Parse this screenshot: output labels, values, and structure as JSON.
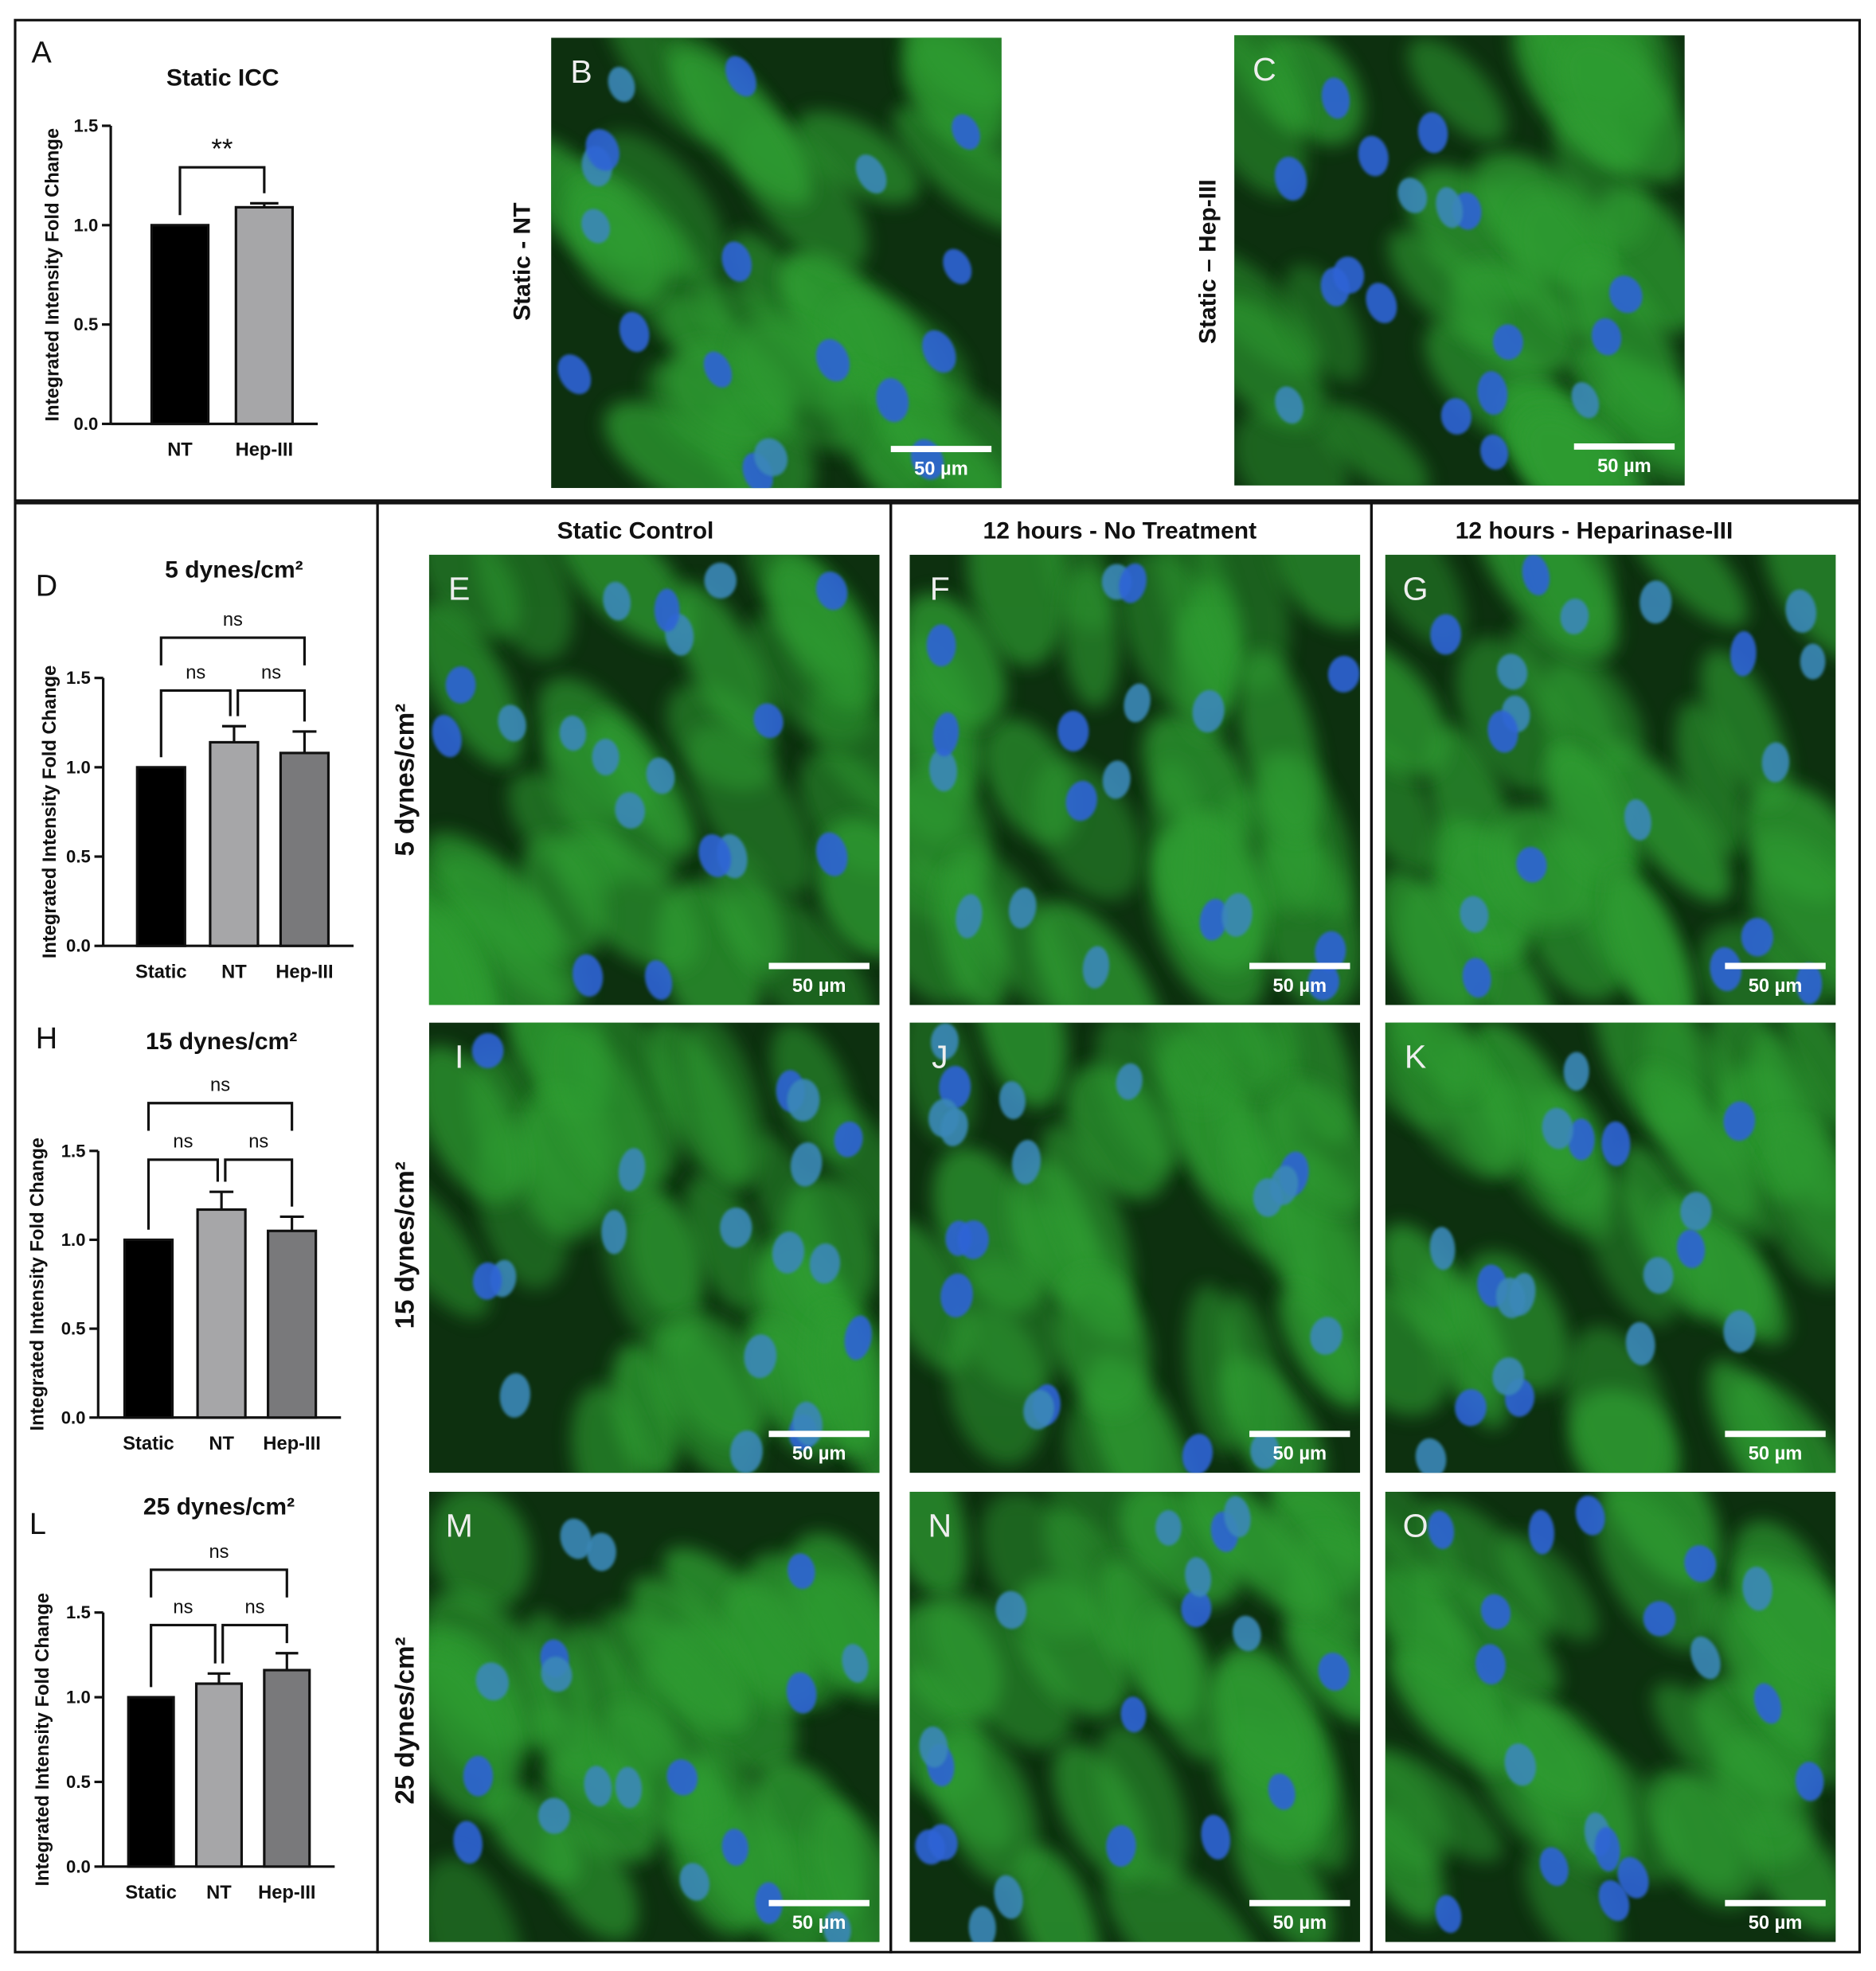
{
  "chart_data": [
    {
      "type": "bar",
      "panel": "A",
      "title": "Static ICC",
      "ylabel": "Integrated Intensity Fold Change",
      "categories": [
        "NT",
        "Hep-III"
      ],
      "values": [
        1.0,
        1.09
      ],
      "errors": [
        null,
        0.02
      ],
      "colors": [
        "#000000",
        "#a6a6a8"
      ],
      "ylim": [
        0,
        1.5
      ],
      "yticks": [
        {
          "value": 0,
          "label": "0.0"
        },
        0.5,
        {
          "value": 1,
          "label": "1.0"
        },
        1.5
      ],
      "annotations": [
        "**"
      ]
    },
    {
      "type": "bar",
      "panel": "D",
      "title": "5 dynes/cm²",
      "ylabel": "Integrated Intensity Fold Change",
      "categories": [
        "Static",
        "NT",
        "Hep-III"
      ],
      "values": [
        1.0,
        1.14,
        1.08
      ],
      "errors": [
        null,
        0.09,
        0.12
      ],
      "colors": [
        "#000000",
        "#a6a6a8",
        "#79797b"
      ],
      "ylim": [
        0,
        1.5
      ],
      "yticks": [
        {
          "value": 0,
          "label": "0.0"
        },
        0.5,
        {
          "value": 1,
          "label": "1.0"
        },
        1.5
      ],
      "annotations": [
        "ns",
        "ns",
        "ns"
      ]
    },
    {
      "type": "bar",
      "panel": "H",
      "title": "15 dynes/cm²",
      "ylabel": "Integrated Intensity Fold Change",
      "categories": [
        "Static",
        "NT",
        "Hep-III"
      ],
      "values": [
        1.0,
        1.17,
        1.05
      ],
      "errors": [
        null,
        0.1,
        0.08
      ],
      "colors": [
        "#000000",
        "#a6a6a8",
        "#79797b"
      ],
      "ylim": [
        0,
        1.5
      ],
      "yticks": [
        {
          "value": 0,
          "label": "0.0"
        },
        0.5,
        {
          "value": 1,
          "label": "1.0"
        },
        1.5
      ],
      "annotations": [
        "ns",
        "ns",
        "ns"
      ]
    },
    {
      "type": "bar",
      "panel": "L",
      "title": "25 dynes/cm²",
      "ylabel": "Integrated Intensity Fold Change",
      "categories": [
        "Static",
        "NT",
        "Hep-III"
      ],
      "values": [
        1.0,
        1.08,
        1.16
      ],
      "errors": [
        null,
        0.06,
        0.1
      ],
      "colors": [
        "#000000",
        "#a6a6a8",
        "#79797b"
      ],
      "ylim": [
        0,
        1.5
      ],
      "yticks": [
        {
          "value": 0,
          "label": "0.0"
        },
        0.5,
        {
          "value": 1,
          "label": "1.0"
        },
        1.5
      ],
      "annotations": [
        "ns",
        "ns",
        "ns"
      ]
    }
  ],
  "images": [
    {
      "panel": "B",
      "label": "Static - NT",
      "scale_bar": "50 µm"
    },
    {
      "panel": "C",
      "label": "Static – Hep-III",
      "scale_bar": "50 µm"
    },
    {
      "panel": "E",
      "scale_bar": "50 µm"
    },
    {
      "panel": "F",
      "scale_bar": "50 µm"
    },
    {
      "panel": "G",
      "scale_bar": "50 µm"
    },
    {
      "panel": "I",
      "scale_bar": "50 µm"
    },
    {
      "panel": "J",
      "scale_bar": "50 µm"
    },
    {
      "panel": "K",
      "scale_bar": "50 µm"
    },
    {
      "panel": "M",
      "scale_bar": "50 µm"
    },
    {
      "panel": "N",
      "scale_bar": "50 µm"
    },
    {
      "panel": "O",
      "scale_bar": "50 µm"
    }
  ],
  "column_headers": [
    "Static Control",
    "12 hours - No Treatment",
    "12 hours - Heparinase-III"
  ],
  "row_labels": [
    "5 dynes/cm²",
    "15 dynes/cm²",
    "25 dynes/cm²"
  ]
}
